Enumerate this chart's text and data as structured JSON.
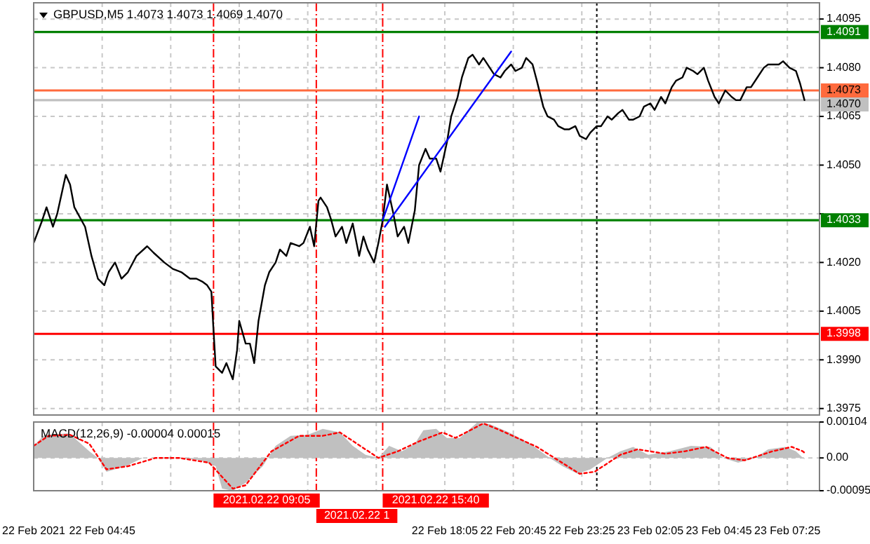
{
  "chart_data": [
    {
      "type": "line",
      "title": "GBPUSD,M5 1.4073 1.4073 1.4069 1.4070",
      "xlim": [
        "2021-02-22T02:05",
        "2021-02-23T08:40"
      ],
      "ylim": [
        1.3973,
        1.41
      ],
      "grid": true,
      "tick_labels": "y",
      "xticks": [
        "2021-02-22T02:05",
        "2021-02-22T04:45",
        "2021-02-22T07:25",
        "2021-02-22T10:05",
        "2021-02-22T12:45",
        "2021-02-22T15:25",
        "2021-02-22T18:05",
        "2021-02-22T20:45",
        "2021-02-22T23:25",
        "2021-02-23T02:05",
        "2021-02-23T04:45",
        "2021-02-23T07:25"
      ],
      "yticks": [
        {
          "value": 1.4095,
          "label": "1.4095"
        },
        {
          "value": 1.408,
          "label": "1.4080"
        },
        {
          "value": 1.4065,
          "label": "1.4065"
        },
        {
          "value": 1.405,
          "label": "1.4050"
        },
        {
          "value": 1.4035,
          "label": null
        },
        {
          "value": 1.402,
          "label": "1.4020"
        },
        {
          "value": 1.4005,
          "label": "1.4005"
        },
        {
          "value": 1.399,
          "label": "1.3990"
        },
        {
          "value": 1.3975,
          "label": "1.3975"
        }
      ],
      "series": [
        {
          "color": "#000000",
          "x": [
            "2021-02-22T02:05",
            "2021-02-22T02:25",
            "2021-02-22T02:35",
            "2021-02-22T02:50",
            "2021-02-22T03:00",
            "2021-02-22T03:20",
            "2021-02-22T03:30",
            "2021-02-22T03:40",
            "2021-02-22T04:05",
            "2021-02-22T04:20",
            "2021-02-22T04:35",
            "2021-02-22T04:50",
            "2021-02-22T05:00",
            "2021-02-22T05:15",
            "2021-02-22T05:30",
            "2021-02-22T05:45",
            "2021-02-22T06:05",
            "2021-02-22T06:30",
            "2021-02-22T06:45",
            "2021-02-22T07:10",
            "2021-02-22T07:30",
            "2021-02-22T07:50",
            "2021-02-22T08:10",
            "2021-02-22T08:25",
            "2021-02-22T08:40",
            "2021-02-22T08:50",
            "2021-02-22T09:00",
            "2021-02-22T09:05",
            "2021-02-22T09:10",
            "2021-02-22T09:25",
            "2021-02-22T09:35",
            "2021-02-22T09:50",
            "2021-02-22T10:00",
            "2021-02-22T10:05",
            "2021-02-22T10:20",
            "2021-02-22T10:30",
            "2021-02-22T10:40",
            "2021-02-22T10:50",
            "2021-02-22T11:05",
            "2021-02-22T11:15",
            "2021-02-22T11:30",
            "2021-02-22T11:40",
            "2021-02-22T11:55",
            "2021-02-22T12:05",
            "2021-02-22T12:25",
            "2021-02-22T12:35",
            "2021-02-22T12:50",
            "2021-02-22T13:00",
            "2021-02-22T13:10",
            "2021-02-22T13:15",
            "2021-02-22T13:30",
            "2021-02-22T13:40",
            "2021-02-22T13:50",
            "2021-02-22T14:05",
            "2021-02-22T14:15",
            "2021-02-22T14:30",
            "2021-02-22T14:45",
            "2021-02-22T14:55",
            "2021-02-22T15:05",
            "2021-02-22T15:20",
            "2021-02-22T15:30",
            "2021-02-22T15:40",
            "2021-02-22T15:50",
            "2021-02-22T16:05",
            "2021-02-22T16:15",
            "2021-02-22T16:30",
            "2021-02-22T16:40",
            "2021-02-22T16:55",
            "2021-02-22T17:05",
            "2021-02-22T17:20",
            "2021-02-22T17:30",
            "2021-02-22T17:45",
            "2021-02-22T17:55",
            "2021-02-22T18:10",
            "2021-02-22T18:20",
            "2021-02-22T18:35",
            "2021-02-22T18:45",
            "2021-02-22T19:00",
            "2021-02-22T19:10",
            "2021-02-22T19:25",
            "2021-02-22T19:35",
            "2021-02-22T19:50",
            "2021-02-22T20:00",
            "2021-02-22T20:15",
            "2021-02-22T20:25",
            "2021-02-22T20:40",
            "2021-02-22T20:50",
            "2021-02-22T21:05",
            "2021-02-22T21:15",
            "2021-02-22T21:30",
            "2021-02-22T21:40",
            "2021-02-22T21:55",
            "2021-02-22T22:05",
            "2021-02-22T22:20",
            "2021-02-22T22:30",
            "2021-02-22T22:45",
            "2021-02-22T22:55",
            "2021-02-22T23:10",
            "2021-02-22T23:20",
            "2021-02-22T23:35",
            "2021-02-22T23:45",
            "2021-02-23T00:00",
            "2021-02-23T00:10",
            "2021-02-23T00:25",
            "2021-02-23T00:35",
            "2021-02-23T00:50",
            "2021-02-23T01:00",
            "2021-02-23T01:15",
            "2021-02-23T01:25",
            "2021-02-23T01:40",
            "2021-02-23T01:50",
            "2021-02-23T02:05",
            "2021-02-23T02:15",
            "2021-02-23T02:30",
            "2021-02-23T02:40",
            "2021-02-23T02:55",
            "2021-02-23T03:05",
            "2021-02-23T03:20",
            "2021-02-23T03:30",
            "2021-02-23T03:45",
            "2021-02-23T03:55",
            "2021-02-23T04:10",
            "2021-02-23T04:20",
            "2021-02-23T04:35",
            "2021-02-23T04:45",
            "2021-02-23T05:00",
            "2021-02-23T05:15",
            "2021-02-23T05:25",
            "2021-02-23T05:35",
            "2021-02-23T05:50",
            "2021-02-23T06:00",
            "2021-02-23T06:15",
            "2021-02-23T06:30",
            "2021-02-23T06:40",
            "2021-02-23T06:50",
            "2021-02-23T07:05",
            "2021-02-23T07:15",
            "2021-02-23T07:30",
            "2021-02-23T07:45",
            "2021-02-23T07:55",
            "2021-02-23T08:05"
          ],
          "values": [
            1.4026,
            1.4033,
            1.4037,
            1.4031,
            1.4035,
            1.4047,
            1.4044,
            1.4037,
            1.4031,
            1.4022,
            1.4015,
            1.4013,
            1.4017,
            1.402,
            1.4015,
            1.4017,
            1.4022,
            1.4025,
            1.4023,
            1.402,
            1.4018,
            1.4017,
            1.4015,
            1.4015,
            1.4014,
            1.4013,
            1.4011,
            1.3999,
            1.3988,
            1.3986,
            1.3989,
            1.3984,
            1.3993,
            1.4002,
            1.3995,
            1.3995,
            1.3989,
            1.4002,
            1.4013,
            1.4017,
            1.402,
            1.4024,
            1.4022,
            1.4026,
            1.4025,
            1.4026,
            1.4031,
            1.4025,
            1.4039,
            1.404,
            1.4037,
            1.4033,
            1.4028,
            1.4031,
            1.4026,
            1.4032,
            1.4022,
            1.4028,
            1.4024,
            1.402,
            1.4026,
            1.4033,
            1.4044,
            1.4035,
            1.4028,
            1.4031,
            1.4026,
            1.4036,
            1.405,
            1.4055,
            1.4052,
            1.4052,
            1.4048,
            1.4057,
            1.4065,
            1.4071,
            1.4077,
            1.4083,
            1.4084,
            1.4081,
            1.4083,
            1.408,
            1.4078,
            1.4077,
            1.4079,
            1.4081,
            1.4079,
            1.408,
            1.4083,
            1.4081,
            1.4076,
            1.4068,
            1.4065,
            1.4064,
            1.4062,
            1.4061,
            1.4061,
            1.4062,
            1.4059,
            1.4058,
            1.406,
            1.4062,
            1.4062,
            1.4065,
            1.4064,
            1.4066,
            1.4067,
            1.4064,
            1.4064,
            1.4065,
            1.4068,
            1.4069,
            1.4067,
            1.4071,
            1.4069,
            1.4074,
            1.4076,
            1.4077,
            1.408,
            1.4079,
            1.4078,
            1.408,
            1.4076,
            1.4071,
            1.4069,
            1.4073,
            1.4071,
            1.407,
            1.407,
            1.4074,
            1.4074,
            1.4077,
            1.408,
            1.4081,
            1.4081,
            1.4081,
            1.4082,
            1.408,
            1.4079,
            1.4075,
            1.407
          ]
        },
        {
          "color": "#0000ff",
          "x": [
            "2021-02-22T15:40",
            "2021-02-22T17:05"
          ],
          "values": [
            1.4033,
            1.4065
          ]
        },
        {
          "color": "#0000ff",
          "x": [
            "2021-02-22T15:45",
            "2021-02-22T20:40"
          ],
          "values": [
            1.4031,
            1.4085
          ]
        }
      ],
      "ref_lines": [
        {
          "axis": "y",
          "value": 1.4091,
          "label": "1.4091",
          "color": "#008000",
          "line_style": "solid"
        },
        {
          "axis": "y",
          "value": 1.4073,
          "label": "1.4073",
          "color": "#ff6a3d",
          "line_style": "solid"
        },
        {
          "axis": "y",
          "value": 1.407,
          "label": "1.4070",
          "color": "#c0c0c0",
          "line_style": "solid"
        },
        {
          "axis": "y",
          "value": 1.4033,
          "label": "1.4033",
          "color": "#008000",
          "line_style": "solid"
        },
        {
          "axis": "y",
          "value": 1.3998,
          "label": "1.3998",
          "color": "#ff0000",
          "line_style": "solid"
        },
        {
          "axis": "x",
          "value": "2021-02-22T09:05",
          "color": "#ff0000",
          "line_style": "dashed"
        },
        {
          "axis": "x",
          "value": "2021-02-22T13:05",
          "color": "#ff0000",
          "line_style": "dashed"
        },
        {
          "axis": "x",
          "value": "2021-02-22T15:40",
          "color": "#ff0000",
          "line_style": "dashed"
        },
        {
          "axis": "x",
          "value": "2021-02-23T00:00",
          "color": "#000000",
          "line_style": "dotted"
        }
      ]
    },
    {
      "type": "area",
      "title": "MACD(12,26,9) -0.00004 0.00015",
      "xlim": [
        "2021-02-22T02:05",
        "2021-02-23T08:40"
      ],
      "ylim": [
        -0.00095,
        0.00104
      ],
      "grid": true,
      "xticks": [
        {
          "value": "2021-02-22T02:05",
          "label": "22 Feb 2021"
        },
        {
          "value": "2021-02-22T04:45",
          "label": "22 Feb 04:45"
        },
        {
          "value": "2021-02-22T07:25",
          "label": null
        },
        {
          "value": "2021-02-22T10:05",
          "label": null
        },
        {
          "value": "2021-02-22T12:45",
          "label": null
        },
        {
          "value": "2021-02-22T15:25",
          "label": null
        },
        {
          "value": "2021-02-22T18:05",
          "label": "22 Feb 18:05"
        },
        {
          "value": "2021-02-22T20:45",
          "label": "22 Feb 20:45"
        },
        {
          "value": "2021-02-22T23:25",
          "label": "22 Feb 23:25"
        },
        {
          "value": "2021-02-23T02:05",
          "label": "23 Feb 02:05"
        },
        {
          "value": "2021-02-23T04:45",
          "label": "23 Feb 04:45"
        },
        {
          "value": "2021-02-23T07:25",
          "label": "23 Feb 07:25"
        }
      ],
      "yticks": [
        {
          "value": 0.00104,
          "label": "0.00104"
        },
        {
          "value": 0,
          "label": "0.00"
        },
        {
          "value": -0.00095,
          "label": "-0.00095"
        }
      ],
      "series": [
        {
          "color": "#c0c0c0",
          "x": [
            "2021-02-22T02:05",
            "2021-02-22T02:30",
            "2021-02-22T03:25",
            "2021-02-22T03:40",
            "2021-02-22T04:15",
            "2021-02-22T04:35",
            "2021-02-22T04:55",
            "2021-02-22T05:40",
            "2021-02-22T06:20",
            "2021-02-22T06:50",
            "2021-02-22T07:45",
            "2021-02-22T08:35",
            "2021-02-22T09:10",
            "2021-02-22T09:25",
            "2021-02-22T09:50",
            "2021-02-22T10:20",
            "2021-02-22T11:00",
            "2021-02-22T11:30",
            "2021-02-22T12:05",
            "2021-02-22T12:45",
            "2021-02-22T13:20",
            "2021-02-22T14:00",
            "2021-02-22T14:30",
            "2021-02-22T15:00",
            "2021-02-22T15:30",
            "2021-02-22T15:55",
            "2021-02-22T16:25",
            "2021-02-22T16:55",
            "2021-02-22T17:15",
            "2021-02-22T17:45",
            "2021-02-22T18:10",
            "2021-02-22T18:40",
            "2021-02-22T19:20",
            "2021-02-22T19:50",
            "2021-02-22T20:35",
            "2021-02-22T21:25",
            "2021-02-22T22:10",
            "2021-02-22T22:40",
            "2021-02-22T23:15",
            "2021-02-22T23:45",
            "2021-02-23T00:25",
            "2021-02-23T00:55",
            "2021-02-23T01:25",
            "2021-02-23T02:00",
            "2021-02-23T02:50",
            "2021-02-23T03:40",
            "2021-02-23T04:25",
            "2021-02-23T04:55",
            "2021-02-23T05:30",
            "2021-02-23T06:10",
            "2021-02-23T06:40",
            "2021-02-23T07:20",
            "2021-02-23T07:45",
            "2021-02-23T08:05"
          ],
          "values": [
            0.00035,
            0.00067,
            0.00071,
            0.00058,
            0.00019,
            0,
            -0.0004,
            -0.00024,
            0,
            0,
            0,
            -7e-05,
            -0.00024,
            -0.00089,
            -0.00095,
            -0.00072,
            -0.00024,
            0.00035,
            0.00064,
            0.00067,
            0.00084,
            0.00074,
            0.00035,
            9e-05,
            0,
            0.00035,
            0.00019,
            0.00041,
            0.0008,
            0.00084,
            0.00058,
            0.00058,
            0.00102,
            0.00098,
            0.00074,
            0.00041,
            0,
            -0.00024,
            -0.00046,
            -0.00033,
            0,
            0.00019,
            0.00032,
            9e-05,
            0.00019,
            0.00035,
            0.00032,
            0,
            -0.00014,
            0,
            0.00025,
            0.00032,
            0.00019,
            -4e-05
          ]
        },
        {
          "type": "line",
          "color": "#ff0000",
          "line_style": "dotted",
          "x": [
            "2021-02-22T02:05",
            "2021-02-22T02:40",
            "2021-02-22T03:30",
            "2021-02-22T04:15",
            "2021-02-22T04:55",
            "2021-02-22T05:45",
            "2021-02-22T06:50",
            "2021-02-22T07:45",
            "2021-02-22T08:55",
            "2021-02-22T09:50",
            "2021-02-22T10:20",
            "2021-02-22T11:20",
            "2021-02-22T12:25",
            "2021-02-22T13:20",
            "2021-02-22T14:00",
            "2021-02-22T14:40",
            "2021-02-22T15:30",
            "2021-02-22T16:15",
            "2021-02-22T17:05",
            "2021-02-22T18:00",
            "2021-02-22T18:30",
            "2021-02-22T19:35",
            "2021-02-22T20:15",
            "2021-02-22T21:40",
            "2021-02-22T22:30",
            "2021-02-22T23:20",
            "2021-02-22T23:55",
            "2021-02-23T00:55",
            "2021-02-23T01:35",
            "2021-02-23T02:40",
            "2021-02-23T03:25",
            "2021-02-23T04:15",
            "2021-02-23T05:05",
            "2021-02-23T05:45",
            "2021-02-23T06:50",
            "2021-02-23T07:35",
            "2021-02-23T08:00",
            "2021-02-23T08:05"
          ],
          "values": [
            0.00035,
            0.00064,
            0.00067,
            0.00041,
            -0.00033,
            -0.00024,
            0,
            0,
            -0.00014,
            -0.00089,
            -0.00079,
            0.00019,
            0.00064,
            0.00064,
            0.00074,
            0.00041,
            0,
            0.00019,
            0.00048,
            0.00074,
            0.00058,
            0.001,
            0.0008,
            0.00032,
            -7e-05,
            -0.00046,
            -0.0004,
            9e-05,
            0.00025,
            0.00012,
            0.00019,
            0.00032,
            0,
            -7e-05,
            0.00019,
            0.00032,
            0.0002,
            0.00015
          ]
        }
      ],
      "ref_lines": [
        {
          "axis": "x",
          "value": "2021-02-22T09:05",
          "label": "2021.02.22 09:05",
          "color": "#ff0000",
          "line_style": "dashed"
        },
        {
          "axis": "x",
          "value": "2021-02-22T13:05",
          "label": "2021.02.22 1",
          "color": "#ff0000",
          "line_style": "dashed"
        },
        {
          "axis": "x",
          "value": "2021-02-22T15:40",
          "label": "2021.02.22 15:40",
          "color": "#ff0000",
          "line_style": "dashed"
        },
        {
          "axis": "x",
          "value": "2021-02-23T00:00",
          "color": "#000000",
          "line_style": "dotted"
        }
      ]
    }
  ]
}
